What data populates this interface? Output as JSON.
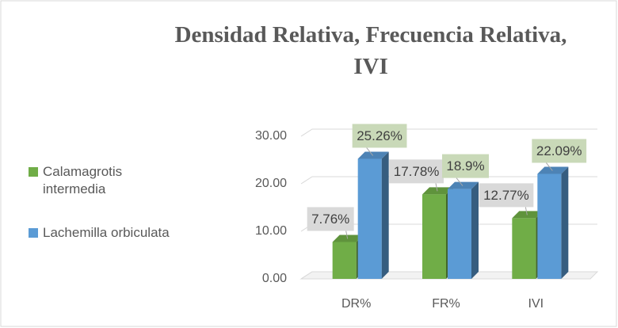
{
  "chart_data": {
    "type": "bar3d",
    "title": "Densidad Relativa, Frecuencia Relativa, IVI",
    "categories": [
      "DR%",
      "FR%",
      "IVI"
    ],
    "series": [
      {
        "name": "Calamagrotis intermedia",
        "color": "#70ad47",
        "values": [
          7.76,
          17.78,
          12.77
        ],
        "value_labels": [
          "7.76%",
          "17.78%",
          "12.77%"
        ]
      },
      {
        "name": "Lachemilla orbiculata",
        "color": "#5b9bd5",
        "values": [
          25.26,
          18.9,
          22.09
        ],
        "value_labels": [
          "25.26%",
          "18.9%",
          "22.09%"
        ]
      }
    ],
    "ylim": [
      0,
      35
    ],
    "yticks": [
      {
        "value": 0,
        "label": "0.00"
      },
      {
        "value": 10,
        "label": "10.00"
      },
      {
        "value": 20,
        "label": "20.00"
      },
      {
        "value": 30,
        "label": "30.00"
      }
    ],
    "grid": true,
    "legend": "left"
  }
}
